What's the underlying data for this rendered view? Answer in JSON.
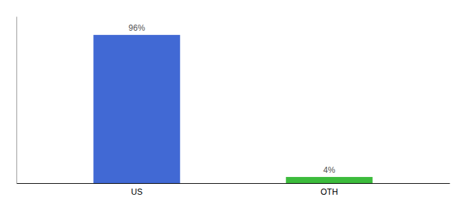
{
  "chart_data": {
    "type": "bar",
    "categories": [
      "US",
      "OTH"
    ],
    "values": [
      96,
      4
    ],
    "colors": [
      "#4169d4",
      "#3cbb3c"
    ],
    "value_labels": [
      "96%",
      "4%"
    ],
    "data_labels": true,
    "ylim": [
      0,
      108
    ],
    "tick_labels": "x"
  }
}
